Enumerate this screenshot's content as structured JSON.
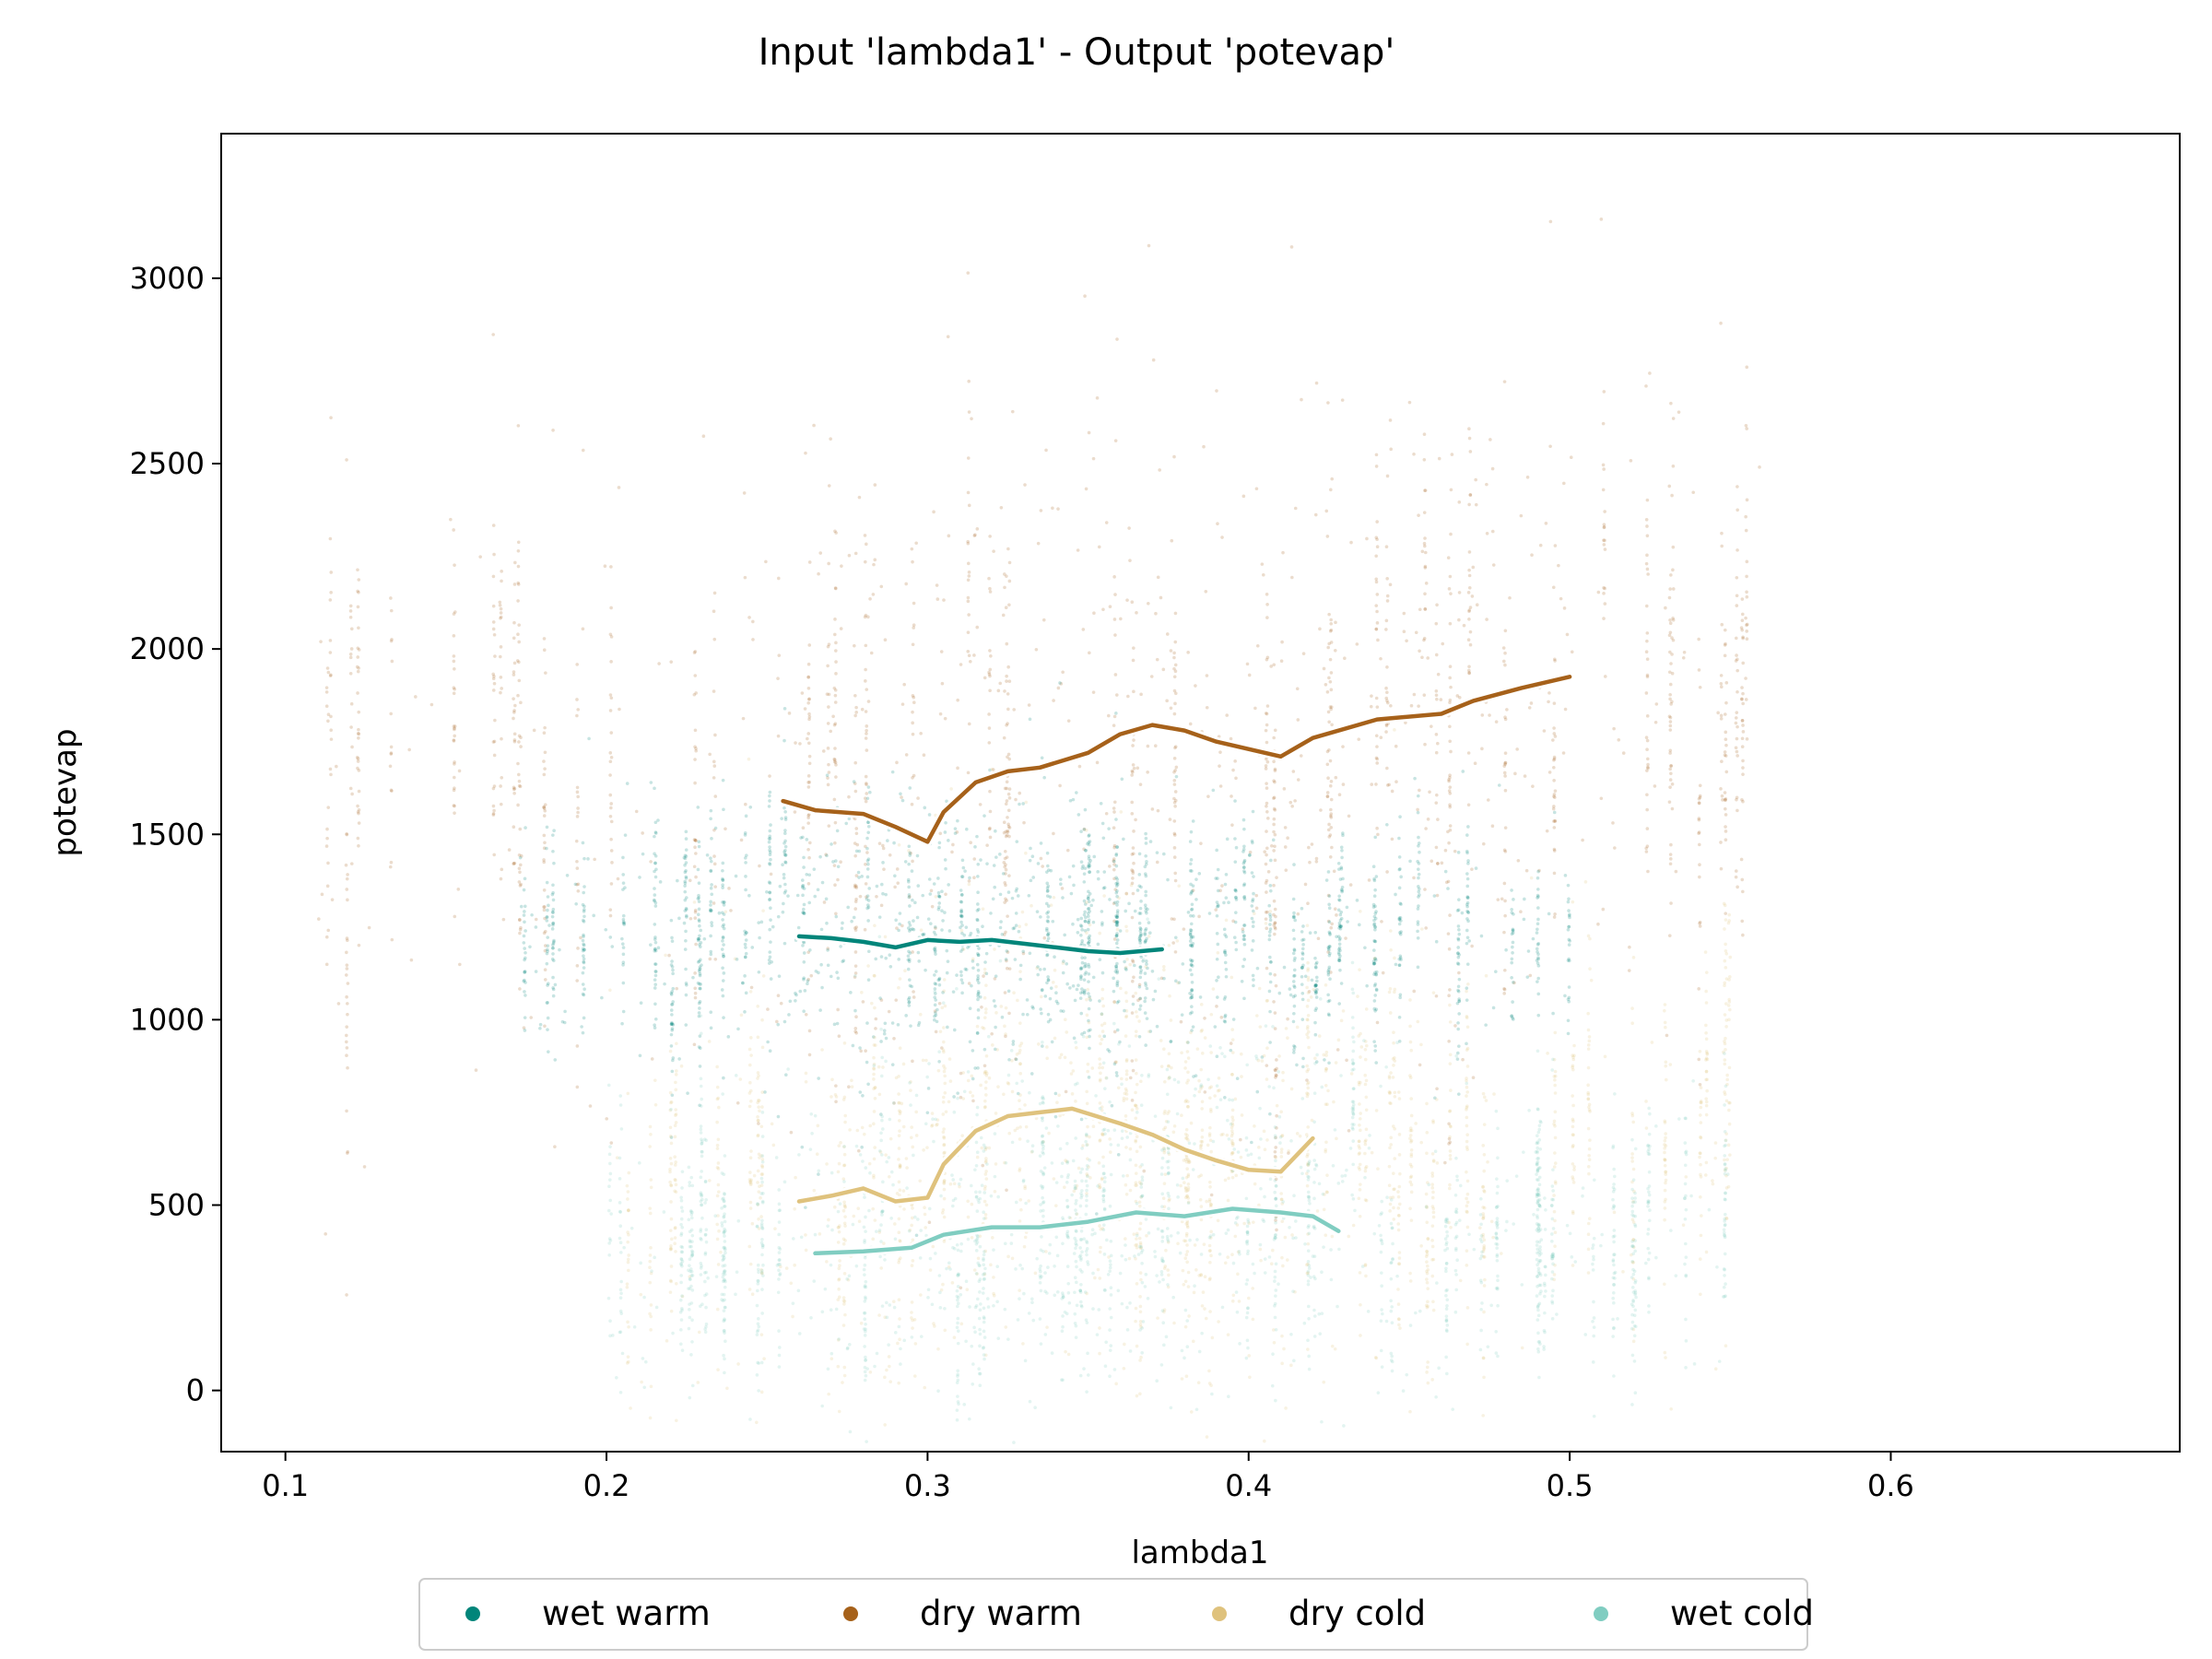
{
  "chart_data": {
    "type": "scatter",
    "title": "Input 'lambda1' - Output 'potevap'",
    "xlabel": "lambda1",
    "ylabel": "potevap",
    "xlim": [
      0.08,
      0.69
    ],
    "ylim": [
      -165,
      3390
    ],
    "x_ticks": [
      0.1,
      0.2,
      0.3,
      0.4,
      0.5,
      0.6
    ],
    "x_tick_labels": [
      "0.1",
      "0.2",
      "0.3",
      "0.4",
      "0.5",
      "0.6"
    ],
    "y_ticks": [
      0,
      500,
      1000,
      1500,
      2000,
      2500,
      3000
    ],
    "y_tick_labels": [
      "0",
      "500",
      "1000",
      "1500",
      "2000",
      "2500",
      "3000"
    ],
    "grid": false,
    "legend_position": "bottom-center",
    "series": [
      {
        "name": "wet warm",
        "color": "#01857a",
        "point_cloud": {
          "x_range": [
            0.17,
            0.5
          ],
          "y_range": [
            900,
            1600
          ],
          "center_y": 1250
        },
        "trend": [
          {
            "x": 0.26,
            "y": 1225
          },
          {
            "x": 0.27,
            "y": 1220
          },
          {
            "x": 0.28,
            "y": 1210
          },
          {
            "x": 0.29,
            "y": 1195
          },
          {
            "x": 0.3,
            "y": 1215
          },
          {
            "x": 0.31,
            "y": 1210
          },
          {
            "x": 0.32,
            "y": 1215
          },
          {
            "x": 0.33,
            "y": 1205
          },
          {
            "x": 0.34,
            "y": 1195
          },
          {
            "x": 0.35,
            "y": 1185
          },
          {
            "x": 0.36,
            "y": 1180
          },
          {
            "x": 0.373,
            "y": 1190
          }
        ]
      },
      {
        "name": "dry warm",
        "color": "#a6611a",
        "point_cloud": {
          "x_range": [
            0.11,
            0.56
          ],
          "y_range": [
            1100,
            2750
          ],
          "center_y": 1800
        },
        "trend": [
          {
            "x": 0.255,
            "y": 1590
          },
          {
            "x": 0.265,
            "y": 1565
          },
          {
            "x": 0.28,
            "y": 1555
          },
          {
            "x": 0.29,
            "y": 1520
          },
          {
            "x": 0.3,
            "y": 1480
          },
          {
            "x": 0.305,
            "y": 1560
          },
          {
            "x": 0.315,
            "y": 1640
          },
          {
            "x": 0.325,
            "y": 1670
          },
          {
            "x": 0.335,
            "y": 1680
          },
          {
            "x": 0.35,
            "y": 1720
          },
          {
            "x": 0.36,
            "y": 1770
          },
          {
            "x": 0.37,
            "y": 1795
          },
          {
            "x": 0.38,
            "y": 1780
          },
          {
            "x": 0.39,
            "y": 1750
          },
          {
            "x": 0.41,
            "y": 1710
          },
          {
            "x": 0.42,
            "y": 1760
          },
          {
            "x": 0.44,
            "y": 1810
          },
          {
            "x": 0.46,
            "y": 1825
          },
          {
            "x": 0.47,
            "y": 1860
          },
          {
            "x": 0.485,
            "y": 1895
          },
          {
            "x": 0.5,
            "y": 1925
          }
        ]
      },
      {
        "name": "dry cold",
        "color": "#dfc27d",
        "point_cloud": {
          "x_range": [
            0.2,
            0.55
          ],
          "y_range": [
            200,
            1400
          ],
          "center_y": 650
        },
        "trend": [
          {
            "x": 0.26,
            "y": 510
          },
          {
            "x": 0.27,
            "y": 525
          },
          {
            "x": 0.28,
            "y": 545
          },
          {
            "x": 0.29,
            "y": 510
          },
          {
            "x": 0.3,
            "y": 520
          },
          {
            "x": 0.305,
            "y": 610
          },
          {
            "x": 0.315,
            "y": 700
          },
          {
            "x": 0.325,
            "y": 740
          },
          {
            "x": 0.335,
            "y": 750
          },
          {
            "x": 0.345,
            "y": 760
          },
          {
            "x": 0.36,
            "y": 720
          },
          {
            "x": 0.37,
            "y": 690
          },
          {
            "x": 0.38,
            "y": 650
          },
          {
            "x": 0.39,
            "y": 620
          },
          {
            "x": 0.4,
            "y": 595
          },
          {
            "x": 0.41,
            "y": 590
          },
          {
            "x": 0.42,
            "y": 680
          }
        ]
      },
      {
        "name": "wet cold",
        "color": "#80cdc1",
        "point_cloud": {
          "x_range": [
            0.2,
            0.55
          ],
          "y_range": [
            100,
            1000
          ],
          "center_y": 420
        },
        "trend": [
          {
            "x": 0.265,
            "y": 370
          },
          {
            "x": 0.28,
            "y": 375
          },
          {
            "x": 0.295,
            "y": 385
          },
          {
            "x": 0.305,
            "y": 420
          },
          {
            "x": 0.32,
            "y": 440
          },
          {
            "x": 0.335,
            "y": 440
          },
          {
            "x": 0.35,
            "y": 455
          },
          {
            "x": 0.365,
            "y": 480
          },
          {
            "x": 0.38,
            "y": 470
          },
          {
            "x": 0.395,
            "y": 490
          },
          {
            "x": 0.41,
            "y": 480
          },
          {
            "x": 0.42,
            "y": 470
          },
          {
            "x": 0.428,
            "y": 430
          }
        ]
      }
    ]
  }
}
